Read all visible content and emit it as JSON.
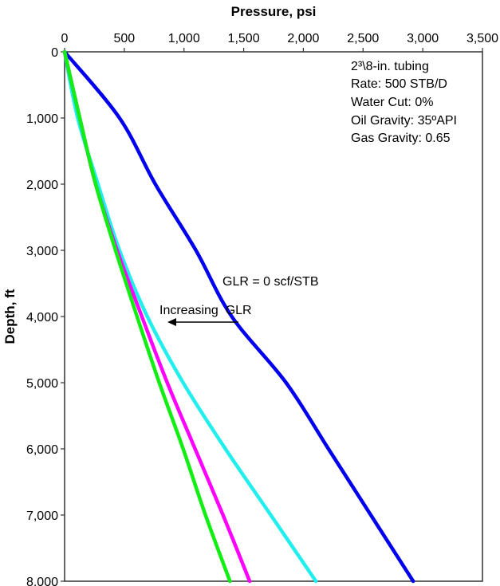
{
  "chart_data": {
    "type": "line",
    "xlabel": "Pressure, psi",
    "ylabel": "Depth, ft",
    "xlim": [
      0,
      3500
    ],
    "ylim": [
      0,
      8000
    ],
    "y_inverted": true,
    "x_axis_position": "top",
    "grid": false,
    "xticks": [
      0,
      500,
      1000,
      1500,
      2000,
      2500,
      3000,
      3500
    ],
    "xtick_labels": [
      "0",
      "500",
      "1,000",
      "1,500",
      "2,000",
      "2,500",
      "3,000",
      "3,500"
    ],
    "yticks": [
      0,
      1000,
      2000,
      3000,
      4000,
      5000,
      6000,
      7000,
      8000
    ],
    "ytick_labels": [
      "0",
      "1,000",
      "2,000",
      "3,000",
      "4,000",
      "5,000",
      "6,000",
      "7,000",
      "8,000"
    ],
    "series": [
      {
        "color": "#0000ee",
        "depth": [
          0,
          1000,
          2000,
          3000,
          4000,
          5000,
          6000,
          7000,
          8000
        ],
        "pressure": [
          0,
          460,
          760,
          1100,
          1400,
          1855,
          2210,
          2565,
          2920
        ]
      },
      {
        "color": "#22eeee",
        "depth": [
          0,
          1000,
          2000,
          3000,
          4000,
          5000,
          6000,
          7000,
          8000
        ],
        "pressure": [
          0,
          110,
          280,
          460,
          693,
          993,
          1347,
          1727,
          2105
        ]
      },
      {
        "color": "#ff00ff",
        "depth": [
          0,
          1000,
          2000,
          3000,
          4000,
          5000,
          6000,
          7000,
          8000
        ],
        "pressure": [
          0,
          127,
          260,
          440,
          647,
          860,
          1093,
          1327,
          1550
        ]
      },
      {
        "color": "#11ee11",
        "depth": [
          0,
          1000,
          2000,
          3000,
          4000,
          5000,
          6000,
          7000,
          8000
        ],
        "pressure": [
          0,
          127,
          260,
          427,
          607,
          793,
          993,
          1180,
          1385
        ]
      }
    ],
    "annotations": {
      "info_box": [
        "2³\\8-in. tubing",
        "Rate: 500 STB/D",
        "Water Cut: 0%",
        "Oil Gravity: 35ºAPI",
        "Gas Gravity: 0.65"
      ],
      "glr_zero_label": "GLR = 0 scf/STB",
      "arrow_label": "Increasing  GLR"
    }
  }
}
